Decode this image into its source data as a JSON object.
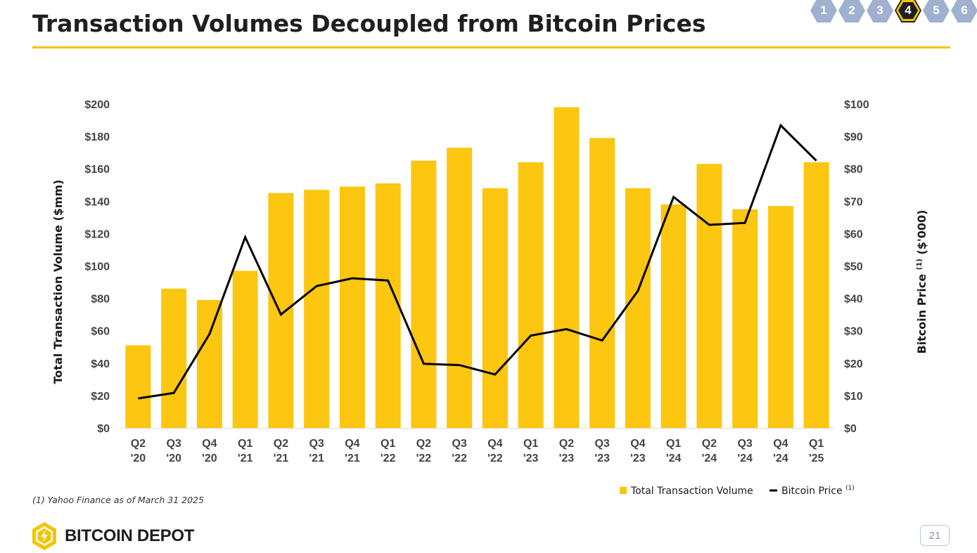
{
  "page": {
    "title": "Transaction Volumes Decoupled from Bitcoin Prices",
    "footnote": "(1)  Yahoo Finance as of March 31 2025",
    "logo_text": "BITCOIN DEPOT",
    "page_number": "21",
    "nav": {
      "items": [
        "1",
        "2",
        "3",
        "4",
        "5",
        "6"
      ],
      "active": "4"
    },
    "colors": {
      "accent": "#f5c400",
      "bar": "#fcc611",
      "line": "#000000",
      "nav_inactive": "#9fb1cf",
      "text": "#1f1f1f"
    }
  },
  "chart_data": {
    "type": "bar",
    "title": "",
    "categories": [
      [
        "Q2",
        "'20"
      ],
      [
        "Q3",
        "'20"
      ],
      [
        "Q4",
        "'20"
      ],
      [
        "Q1",
        "'21"
      ],
      [
        "Q2",
        "'21"
      ],
      [
        "Q3",
        "'21"
      ],
      [
        "Q4",
        "'21"
      ],
      [
        "Q1",
        "'22"
      ],
      [
        "Q2",
        "'22"
      ],
      [
        "Q3",
        "'22"
      ],
      [
        "Q4",
        "'22"
      ],
      [
        "Q1",
        "'23"
      ],
      [
        "Q2",
        "'23"
      ],
      [
        "Q3",
        "'23"
      ],
      [
        "Q4",
        "'23"
      ],
      [
        "Q1",
        "'24"
      ],
      [
        "Q2",
        "'24"
      ],
      [
        "Q3",
        "'24"
      ],
      [
        "Q4",
        "'24"
      ],
      [
        "Q1",
        "'25"
      ]
    ],
    "series": [
      {
        "name": "Total Transaction Volume",
        "type": "bar",
        "axis": "left",
        "values": [
          51,
          86,
          79,
          97,
          145,
          147,
          149,
          151,
          165,
          173,
          148,
          164,
          198,
          179,
          148,
          138,
          163,
          135,
          137,
          164
        ]
      },
      {
        "name": "Bitcoin Price",
        "legend_superscript": "(1)",
        "type": "line",
        "axis": "right",
        "values": [
          9.1,
          10.8,
          29.0,
          58.9,
          35.0,
          43.8,
          46.2,
          45.5,
          19.8,
          19.4,
          16.5,
          28.5,
          30.5,
          27.0,
          42.3,
          71.3,
          62.7,
          63.3,
          93.4,
          82.5
        ]
      }
    ],
    "y_left": {
      "label": "Total Transaction Volume ($mm)",
      "ylim": [
        0,
        200
      ],
      "ticks": [
        "$0",
        "$20",
        "$40",
        "$60",
        "$80",
        "$100",
        "$120",
        "$140",
        "$160",
        "$180",
        "$200"
      ]
    },
    "y_right": {
      "label": "Bitcoin Price",
      "label_superscript": "(1)",
      "label_suffix": "($'000)",
      "ylim": [
        0,
        100
      ],
      "ticks": [
        "$0",
        "$10",
        "$20",
        "$30",
        "$40",
        "$50",
        "$60",
        "$70",
        "$80",
        "$90",
        "$100"
      ]
    },
    "grid": false,
    "legend_position": "bottom-right"
  }
}
